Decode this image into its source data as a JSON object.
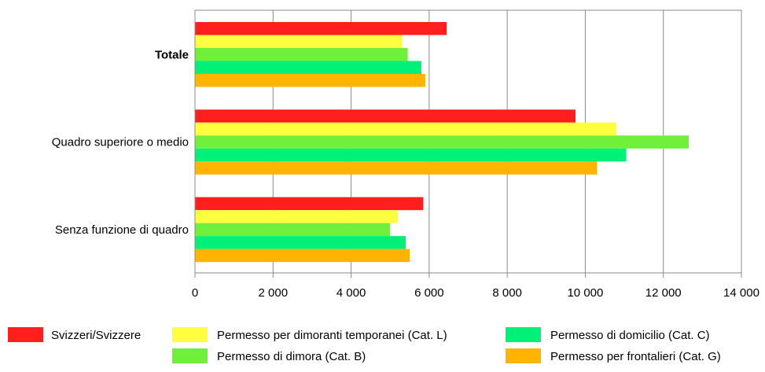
{
  "chart_data": {
    "type": "bar",
    "orientation": "horizontal",
    "categories": [
      "Totale",
      "Quadro superiore o medio",
      "Senza funzione di quadro"
    ],
    "emphasized_category": "Totale",
    "series": [
      {
        "name": "Svizzeri/Svizzere",
        "color": "#ff1f1f",
        "values": [
          6450,
          9750,
          5850
        ]
      },
      {
        "name": "Permesso per dimoranti temporanei (Cat. L)",
        "color": "#ffff40",
        "values": [
          5300,
          10800,
          5200
        ]
      },
      {
        "name": "Permesso di dimora (Cat. B)",
        "color": "#70f03a",
        "values": [
          5450,
          12650,
          5000
        ]
      },
      {
        "name": "Permesso di domicilio (Cat. C)",
        "color": "#00f078",
        "values": [
          5800,
          11050,
          5400
        ]
      },
      {
        "name": "Permesso per frontalieri (Cat. G)",
        "color": "#ffb400",
        "values": [
          5900,
          10300,
          5500
        ]
      }
    ],
    "xlim": [
      0,
      14000
    ],
    "xticks": [
      0,
      2000,
      4000,
      6000,
      8000,
      10000,
      12000,
      14000
    ],
    "xtick_labels": [
      "0",
      "2 000",
      "4 000",
      "6 000",
      "8 000",
      "10 000",
      "12 000",
      "14 000"
    ],
    "grid": "vertical",
    "legend_position": "bottom",
    "legend_order": [
      0,
      1,
      3,
      2,
      4
    ]
  }
}
